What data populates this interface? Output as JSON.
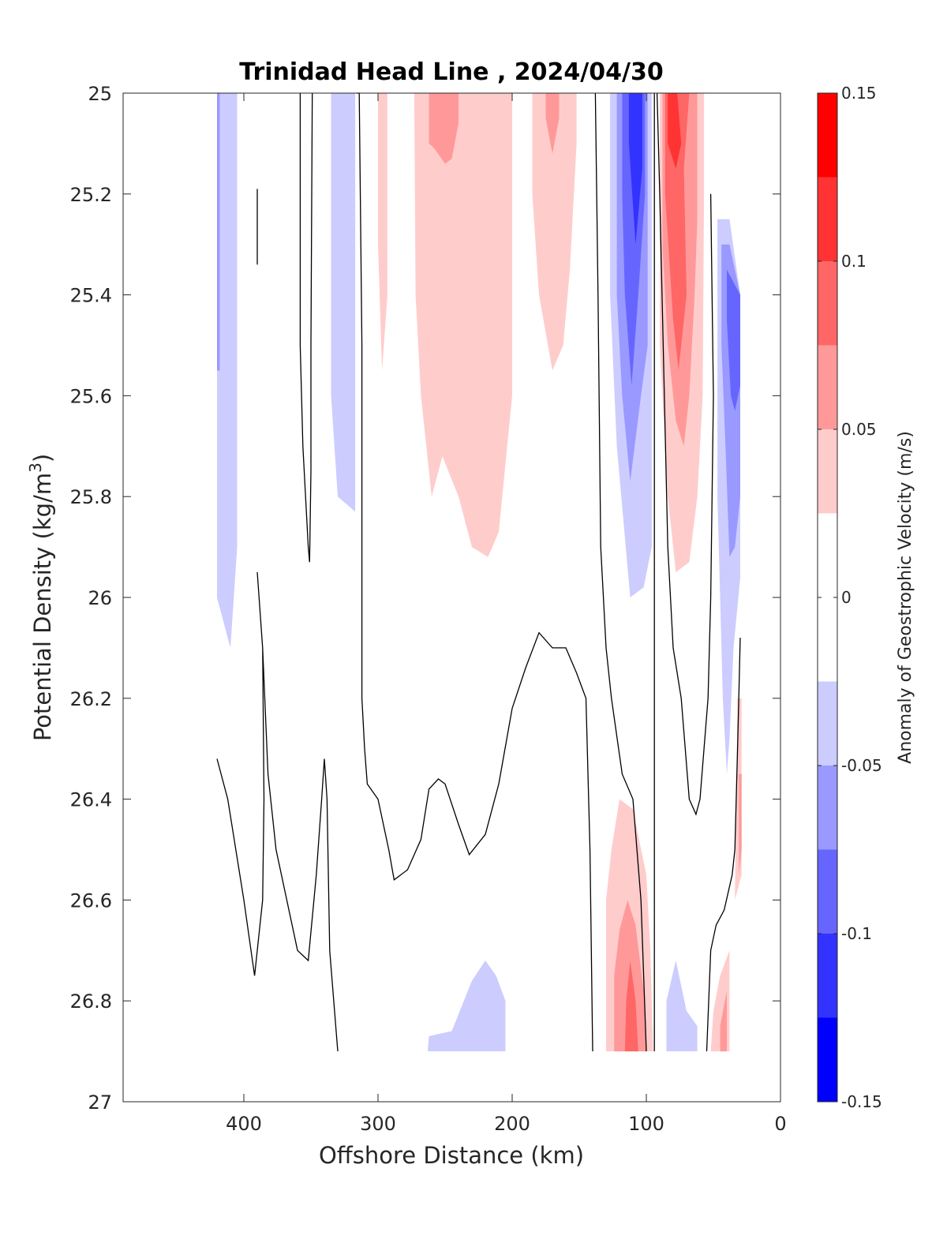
{
  "chart_data": {
    "type": "contour",
    "title": "Trinidad Head Line , 2024/04/30",
    "xlabel": "Offshore Distance (km)",
    "ylabel": "Potential Density (kg/m",
    "ylabel_sup": "3",
    "ylabel_close": ")",
    "xlim": [
      490,
      0
    ],
    "ylim": [
      25,
      27
    ],
    "x_ticks": [
      400,
      300,
      200,
      100,
      0
    ],
    "y_ticks": [
      25,
      25.2,
      25.4,
      25.6,
      25.8,
      26,
      26.2,
      26.4,
      26.6,
      26.8,
      27
    ],
    "colorbar": {
      "label": "Anomaly of Geostrophic Velocity (m/s)",
      "range": [
        -0.15,
        0.15
      ],
      "ticks": [
        0.15,
        0.1,
        0.05,
        0,
        -0.05,
        -0.1,
        -0.15
      ],
      "levels": [
        {
          "min": -0.15,
          "max": -0.125,
          "color": "#0000ff"
        },
        {
          "min": -0.125,
          "max": -0.1,
          "color": "#3333ff"
        },
        {
          "min": -0.1,
          "max": -0.075,
          "color": "#6666ff"
        },
        {
          "min": -0.075,
          "max": -0.05,
          "color": "#9999ff"
        },
        {
          "min": -0.05,
          "max": -0.025,
          "color": "#ccccff"
        },
        {
          "min": -0.025,
          "max": 0.025,
          "color": "#ffffff"
        },
        {
          "min": 0.025,
          "max": 0.05,
          "color": "#ffcccc"
        },
        {
          "min": 0.05,
          "max": 0.075,
          "color": "#ff9999"
        },
        {
          "min": 0.075,
          "max": 0.1,
          "color": "#ff6666"
        },
        {
          "min": 0.1,
          "max": 0.125,
          "color": "#ff3333"
        },
        {
          "min": 0.125,
          "max": 0.15,
          "color": "#ff0000"
        }
      ]
    },
    "regions": [
      {
        "color": "#ccccff",
        "points": [
          [
            420,
            25
          ],
          [
            405,
            25
          ],
          [
            405,
            25.9
          ],
          [
            410,
            26.1
          ],
          [
            420,
            26
          ]
        ]
      },
      {
        "color": "#9999ff",
        "points": [
          [
            420,
            25
          ],
          [
            418,
            25
          ],
          [
            418,
            25.55
          ],
          [
            420,
            25.55
          ]
        ]
      },
      {
        "color": "#ccccff",
        "points": [
          [
            335,
            25
          ],
          [
            317,
            25
          ],
          [
            317,
            25.83
          ],
          [
            330,
            25.8
          ],
          [
            335,
            25.6
          ]
        ]
      },
      {
        "color": "#ffcccc",
        "points": [
          [
            300,
            25
          ],
          [
            293,
            25
          ],
          [
            293,
            25.4
          ],
          [
            297,
            25.55
          ],
          [
            300,
            25.3
          ]
        ]
      },
      {
        "color": "#ffcccc",
        "points": [
          [
            273,
            25
          ],
          [
            200,
            25
          ],
          [
            200,
            25.6
          ],
          [
            210,
            25.87
          ],
          [
            218,
            25.92
          ],
          [
            230,
            25.9
          ],
          [
            240,
            25.8
          ],
          [
            252,
            25.72
          ],
          [
            260,
            25.8
          ],
          [
            268,
            25.6
          ],
          [
            272,
            25.4
          ]
        ]
      },
      {
        "color": "#ff9999",
        "points": [
          [
            262,
            25
          ],
          [
            240,
            25
          ],
          [
            240,
            25.06
          ],
          [
            245,
            25.13
          ],
          [
            250,
            25.14
          ],
          [
            258,
            25.11
          ],
          [
            262,
            25.1
          ]
        ]
      },
      {
        "color": "#ffcccc",
        "points": [
          [
            185,
            25
          ],
          [
            152,
            25
          ],
          [
            152,
            25.1
          ],
          [
            157,
            25.35
          ],
          [
            162,
            25.5
          ],
          [
            170,
            25.55
          ],
          [
            180,
            25.4
          ],
          [
            185,
            25.2
          ]
        ]
      },
      {
        "color": "#ff9999",
        "points": [
          [
            175,
            25
          ],
          [
            165,
            25
          ],
          [
            165,
            25.05
          ],
          [
            170,
            25.12
          ],
          [
            175,
            25.05
          ]
        ]
      },
      {
        "color": "#ccccff",
        "points": [
          [
            127,
            25
          ],
          [
            96,
            25
          ],
          [
            96,
            25.9
          ],
          [
            102,
            25.98
          ],
          [
            112,
            26
          ],
          [
            122,
            25.7
          ],
          [
            127,
            25.4
          ]
        ]
      },
      {
        "color": "#9999ff",
        "points": [
          [
            122,
            25
          ],
          [
            99,
            25
          ],
          [
            99,
            25.5
          ],
          [
            104,
            25.6
          ],
          [
            112,
            25.77
          ],
          [
            118,
            25.6
          ],
          [
            122,
            25.4
          ]
        ]
      },
      {
        "color": "#6666ff",
        "points": [
          [
            118,
            25
          ],
          [
            101,
            25
          ],
          [
            101,
            25.2
          ],
          [
            106,
            25.4
          ],
          [
            111,
            25.58
          ],
          [
            116,
            25.4
          ],
          [
            118,
            25.2
          ]
        ]
      },
      {
        "color": "#3333ff",
        "points": [
          [
            113,
            25
          ],
          [
            103,
            25
          ],
          [
            103,
            25.15
          ],
          [
            108,
            25.3
          ],
          [
            113,
            25.1
          ]
        ]
      },
      {
        "color": "#ffcccc",
        "points": [
          [
            90,
            25
          ],
          [
            57,
            25
          ],
          [
            57,
            25.2
          ],
          [
            58,
            25.6
          ],
          [
            62,
            25.8
          ],
          [
            68,
            25.93
          ],
          [
            78,
            25.95
          ],
          [
            84,
            25.8
          ],
          [
            90,
            25.5
          ]
        ]
      },
      {
        "color": "#ff9999",
        "points": [
          [
            88,
            25
          ],
          [
            62,
            25
          ],
          [
            62,
            25.25
          ],
          [
            64,
            25.4
          ],
          [
            68,
            25.6
          ],
          [
            72,
            25.7
          ],
          [
            78,
            25.65
          ],
          [
            84,
            25.5
          ],
          [
            88,
            25.3
          ]
        ]
      },
      {
        "color": "#ff6666",
        "points": [
          [
            86,
            25
          ],
          [
            68,
            25
          ],
          [
            72,
            25.15
          ],
          [
            70,
            25.4
          ],
          [
            76,
            25.55
          ],
          [
            80,
            25.45
          ],
          [
            86,
            25.2
          ]
        ]
      },
      {
        "color": "#ff3333",
        "points": [
          [
            84,
            25
          ],
          [
            77,
            25
          ],
          [
            74,
            25.1
          ],
          [
            78,
            25.15
          ],
          [
            84,
            25.1
          ]
        ]
      },
      {
        "color": "#ccccff",
        "points": [
          [
            47,
            25.25
          ],
          [
            38,
            25.25
          ],
          [
            30,
            25.4
          ],
          [
            30,
            25.8
          ],
          [
            30,
            25.96
          ],
          [
            35,
            26.1
          ],
          [
            38,
            26.28
          ],
          [
            40,
            26.35
          ],
          [
            43,
            26.2
          ],
          [
            47,
            25.8
          ]
        ]
      },
      {
        "color": "#9999ff",
        "points": [
          [
            44,
            25.3
          ],
          [
            38,
            25.3
          ],
          [
            30,
            25.4
          ],
          [
            30,
            25.8
          ],
          [
            34,
            25.9
          ],
          [
            38,
            25.92
          ],
          [
            41,
            25.7
          ],
          [
            44,
            25.5
          ]
        ]
      },
      {
        "color": "#6666ff",
        "points": [
          [
            40,
            25.35
          ],
          [
            30,
            25.4
          ],
          [
            30,
            25.58
          ],
          [
            34,
            25.63
          ],
          [
            37,
            25.6
          ],
          [
            40,
            25.45
          ]
        ]
      },
      {
        "color": "#ffcccc",
        "points": [
          [
            32,
            26.2
          ],
          [
            29,
            26.2
          ],
          [
            29,
            26.55
          ],
          [
            34,
            26.6
          ],
          [
            33,
            26.4
          ]
        ]
      },
      {
        "color": "#ff9999",
        "points": [
          [
            31,
            26.35
          ],
          [
            29,
            26.35
          ],
          [
            29,
            26.5
          ],
          [
            31,
            26.55
          ]
        ]
      },
      {
        "color": "#ffcccc",
        "points": [
          [
            130,
            26.9
          ],
          [
            95,
            26.9
          ],
          [
            97,
            26.7
          ],
          [
            100,
            26.55
          ],
          [
            110,
            26.42
          ],
          [
            120,
            26.4
          ],
          [
            126,
            26.5
          ],
          [
            130,
            26.6
          ]
        ]
      },
      {
        "color": "#ff9999",
        "points": [
          [
            124,
            26.9
          ],
          [
            100,
            26.9
          ],
          [
            102,
            26.78
          ],
          [
            108,
            26.65
          ],
          [
            114,
            26.6
          ],
          [
            120,
            26.66
          ],
          [
            124,
            26.75
          ]
        ]
      },
      {
        "color": "#ff6666",
        "points": [
          [
            116,
            26.9
          ],
          [
            106,
            26.9
          ],
          [
            108,
            26.8
          ],
          [
            112,
            26.72
          ],
          [
            115,
            26.8
          ]
        ]
      },
      {
        "color": "#ccccff",
        "points": [
          [
            263,
            26.9
          ],
          [
            205,
            26.9
          ],
          [
            205,
            26.8
          ],
          [
            212,
            26.75
          ],
          [
            220,
            26.72
          ],
          [
            230,
            26.76
          ],
          [
            245,
            26.86
          ],
          [
            262,
            26.87
          ]
        ]
      },
      {
        "color": "#ccccff",
        "points": [
          [
            85,
            26.9
          ],
          [
            62,
            26.9
          ],
          [
            62,
            26.85
          ],
          [
            70,
            26.82
          ],
          [
            78,
            26.72
          ],
          [
            85,
            26.8
          ]
        ]
      },
      {
        "color": "#ffcccc",
        "points": [
          [
            52,
            26.9
          ],
          [
            38,
            26.9
          ],
          [
            38,
            26.7
          ],
          [
            45,
            26.75
          ],
          [
            50,
            26.82
          ]
        ]
      },
      {
        "color": "#ff9999",
        "points": [
          [
            45,
            26.9
          ],
          [
            40,
            26.9
          ],
          [
            40,
            26.78
          ],
          [
            45,
            26.85
          ]
        ]
      }
    ],
    "zero_contours": [
      [
        [
          390,
          25.19
        ],
        [
          390,
          25.34
        ]
      ],
      [
        [
          358,
          25
        ],
        [
          358,
          25.5
        ],
        [
          356,
          25.7
        ],
        [
          352,
          25.9
        ],
        [
          351,
          25.93
        ],
        [
          350,
          25.75
        ],
        [
          350,
          25.5
        ],
        [
          349,
          25
        ]
      ],
      [
        [
          316,
          25
        ],
        [
          314,
          25
        ],
        [
          312,
          25.5
        ],
        [
          312,
          26.2
        ],
        [
          310,
          26.3
        ],
        [
          308,
          26.37
        ],
        [
          300,
          26.4
        ],
        [
          292,
          26.5
        ],
        [
          288,
          26.56
        ],
        [
          278,
          26.54
        ],
        [
          268,
          26.48
        ],
        [
          262,
          26.38
        ],
        [
          255,
          26.36
        ],
        [
          250,
          26.37
        ],
        [
          240,
          26.45
        ],
        [
          232,
          26.51
        ],
        [
          220,
          26.47
        ],
        [
          210,
          26.37
        ],
        [
          200,
          26.22
        ],
        [
          190,
          26.14
        ],
        [
          180,
          26.07
        ],
        [
          170,
          26.1
        ],
        [
          160,
          26.1
        ],
        [
          152,
          26.15
        ],
        [
          145,
          26.2
        ],
        [
          142,
          26.5
        ],
        [
          140,
          26.9
        ]
      ],
      [
        [
          138,
          25
        ],
        [
          136,
          25.4
        ],
        [
          134,
          25.9
        ],
        [
          130,
          26.1
        ],
        [
          126,
          26.2
        ],
        [
          118,
          26.35
        ],
        [
          110,
          26.4
        ],
        [
          104,
          26.6
        ],
        [
          100,
          26.9
        ]
      ],
      [
        [
          94,
          25
        ],
        [
          94,
          26.9
        ]
      ],
      [
        [
          52,
          25.2
        ],
        [
          50,
          25.6
        ],
        [
          52,
          26
        ],
        [
          54,
          26.2
        ],
        [
          57,
          26.3
        ],
        [
          60,
          26.4
        ],
        [
          63,
          26.43
        ],
        [
          68,
          26.4
        ],
        [
          74,
          26.2
        ],
        [
          80,
          26.1
        ],
        [
          84,
          25.9
        ],
        [
          90,
          25.2
        ],
        [
          92,
          25
        ]
      ],
      [
        [
          30,
          26.08
        ],
        [
          32,
          26.3
        ],
        [
          34,
          26.5
        ],
        [
          36,
          26.55
        ],
        [
          42,
          26.62
        ],
        [
          48,
          26.65
        ],
        [
          52,
          26.7
        ],
        [
          55,
          26.9
        ]
      ],
      [
        [
          420,
          26.32
        ],
        [
          412,
          26.4
        ],
        [
          400,
          26.6
        ],
        [
          392,
          26.75
        ],
        [
          386,
          26.6
        ],
        [
          385,
          26.4
        ],
        [
          386,
          26.1
        ],
        [
          390,
          25.95
        ],
        [
          386,
          26.1
        ],
        [
          382,
          26.35
        ],
        [
          376,
          26.5
        ],
        [
          368,
          26.6
        ],
        [
          360,
          26.7
        ],
        [
          352,
          26.72
        ],
        [
          346,
          26.55
        ],
        [
          342,
          26.4
        ],
        [
          340,
          26.32
        ],
        [
          338,
          26.4
        ],
        [
          336,
          26.7
        ],
        [
          330,
          26.9
        ]
      ]
    ]
  }
}
